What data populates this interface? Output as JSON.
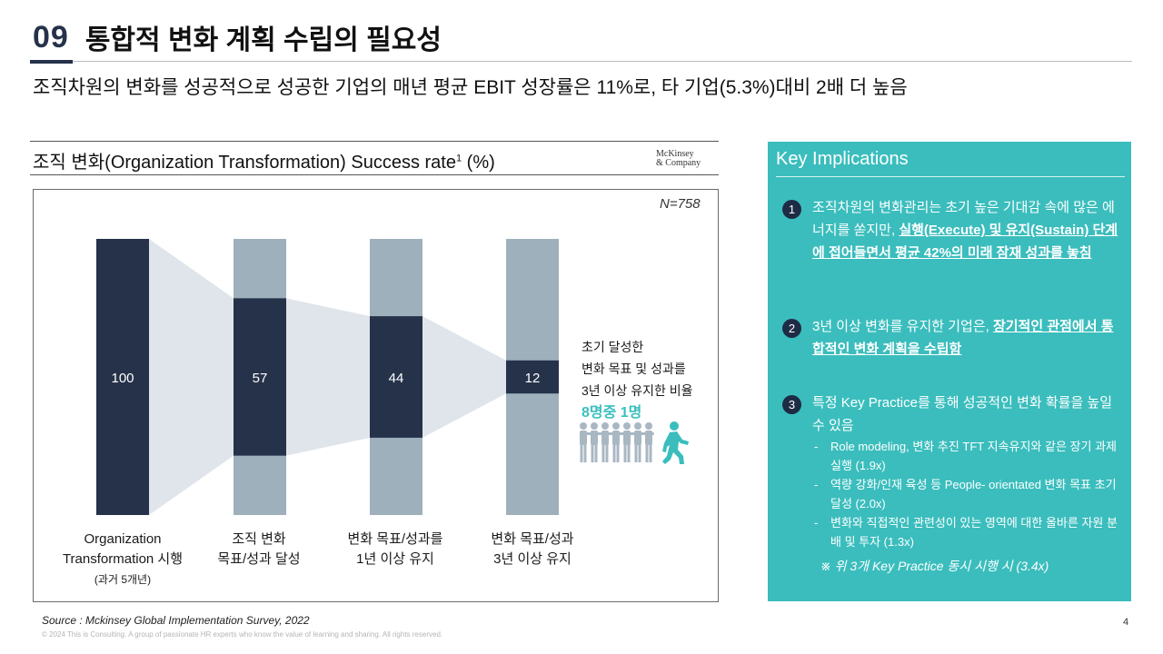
{
  "header": {
    "number": "09",
    "title": "통합적 변화 계획 수립의 필요성"
  },
  "subtitle": "조직차원의 변화를 성공적으로 성공한 기업의 매년 평균 EBIT 성장률은 11%로, 타 기업(5.3%)대비 2배 더 높음",
  "chart_title": {
    "text": "조직 변화(Organization Transformation) Success rate",
    "footnote": "1",
    "unit": " (%)"
  },
  "logo": {
    "line1": "McKinsey",
    "line2": "& Company"
  },
  "chart_data": {
    "type": "bar",
    "title": "조직 변화(Organization Transformation) Success rate¹ (%)",
    "sample": "N=758",
    "categories": [
      "Organization Transformation 시행 (과거 5개년)",
      "조직 변화 목표/성과 달성",
      "변화 목표/성과를 1년 이상 유지",
      "변화 목표/성과 3년 이상 유지"
    ],
    "values": [
      100,
      57,
      44,
      12
    ],
    "ylim": [
      0,
      100
    ],
    "grid": false
  },
  "categories": [
    {
      "line1": "Organization",
      "line2": "Transformation 시행",
      "line3": "(과거 5개년)"
    },
    {
      "line1": "조직 변화",
      "line2": "목표/성과 달성"
    },
    {
      "line1": "변화 목표/성과를",
      "line2": "1년 이상 유지"
    },
    {
      "line1": "변화 목표/성과",
      "line2": "3년 이상 유지"
    }
  ],
  "annotation": {
    "line1": "초기 달성한",
    "line2": "변화 목표 및 성과를",
    "line3": "3년 이상 유지한 비율",
    "highlight": "8명중 1명"
  },
  "implications": {
    "title": "Key Implications",
    "items": [
      {
        "num": "1",
        "text_a": "조직차원의 변화관리는 초기 높은 기대감 속에 많은 에너지를 쏟지만, ",
        "text_b": "실행(Execute) 및 유지(Sustain) 단계에 접어들면서 평균 42%의 미래 잠재 성과를 놓침"
      },
      {
        "num": "2",
        "text_a": "3년 이상 변화를 유지한 기업은, ",
        "text_b": "장기적인 관점에서 통합적인 변화 계획을 수립함"
      },
      {
        "num": "3",
        "text_a": "특정 Key Practice를 통해 성공적인 변화 확률을 높일 수 있음",
        "subs": [
          "Role modeling, 변화 추진 TFT 지속유지와 같은 장기 과제 실행 (1.9x)",
          "역량 강화/인재 육성 등 People- orientated 변화 목표 초기 달성 (2.0x)",
          "변화와 직접적인 관련성이 있는 영역에 대한 올바른 자원 분배 및 투자 (1.3x)"
        ],
        "note": "※ 위 3개 Key Practice 동시 시행 시 (3.4x)"
      }
    ]
  },
  "footer": {
    "source": "Source :  Mckinsey Global Implementation Survey, 2022",
    "copyright": "© 2024 This is Consulting. A group of passionate HR experts who know the value of learning and sharing. All rights reserved.",
    "page": "4"
  },
  "colors": {
    "navy": "#25324a",
    "gray_bar": "#9fb0bd",
    "funnel": "#dfe5ea",
    "teal": "#3bbdbd"
  }
}
